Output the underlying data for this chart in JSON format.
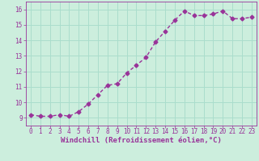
{
  "x": [
    0,
    1,
    2,
    3,
    4,
    5,
    6,
    7,
    8,
    9,
    10,
    11,
    12,
    13,
    14,
    15,
    16,
    17,
    18,
    19,
    20,
    21,
    22,
    23
  ],
  "y": [
    9.2,
    9.1,
    9.1,
    9.2,
    9.1,
    9.4,
    9.9,
    10.5,
    11.1,
    11.2,
    11.9,
    12.4,
    12.9,
    13.9,
    14.6,
    15.3,
    15.9,
    15.6,
    15.6,
    15.7,
    15.9,
    15.4,
    15.4,
    15.5
  ],
  "line_color": "#993399",
  "marker": "D",
  "marker_size": 2.5,
  "bg_color": "#cceedd",
  "grid_color": "#aaddcc",
  "xlabel": "Windchill (Refroidissement éolien,°C)",
  "xlim": [
    -0.5,
    23.5
  ],
  "ylim": [
    8.5,
    16.5
  ],
  "yticks": [
    9,
    10,
    11,
    12,
    13,
    14,
    15,
    16
  ],
  "xticks": [
    0,
    1,
    2,
    3,
    4,
    5,
    6,
    7,
    8,
    9,
    10,
    11,
    12,
    13,
    14,
    15,
    16,
    17,
    18,
    19,
    20,
    21,
    22,
    23
  ],
  "tick_fontsize": 5.5,
  "xlabel_fontsize": 6.5,
  "line_width": 1.0
}
